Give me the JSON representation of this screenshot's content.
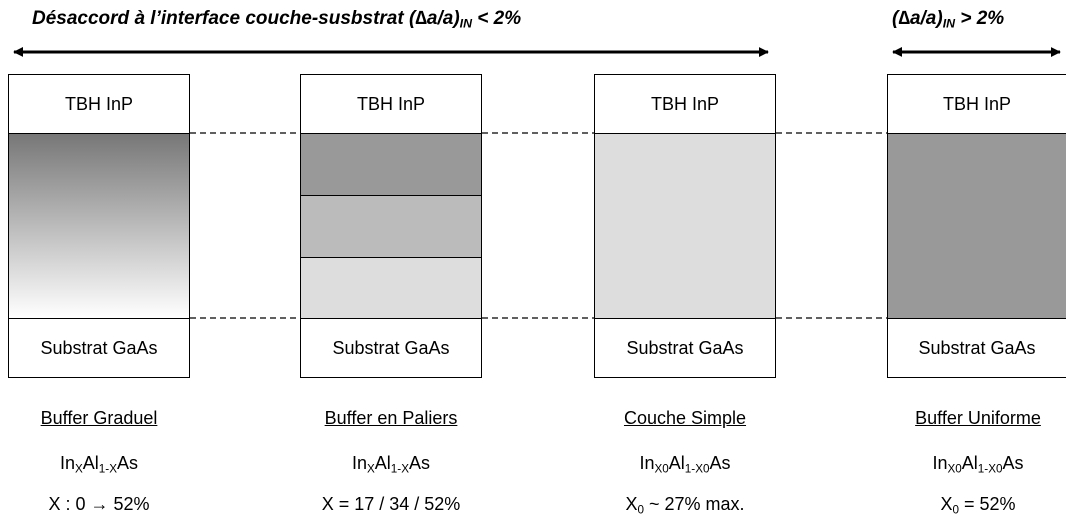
{
  "title": {
    "left": [
      {
        "text": "Désaccord à l’interface couche-susbstrat (∆a/a)"
      },
      {
        "sub": "IN"
      },
      {
        "text": " < 2%"
      }
    ],
    "right": [
      {
        "text": "(∆a/a)"
      },
      {
        "sub": "IN"
      },
      {
        "text": " > 2%"
      }
    ]
  },
  "columns": [
    {
      "top": "TBH InP",
      "bottom": "Substrat GaAs",
      "name": "Buffer Graduel",
      "formula": [
        {
          "text": "In"
        },
        {
          "sub": "X"
        },
        {
          "text": "Al"
        },
        {
          "sub": "1-X"
        },
        {
          "text": "As"
        }
      ],
      "condition": [
        {
          "text": "X : 0 → 52%"
        }
      ]
    },
    {
      "top": "TBH InP",
      "bottom": "Substrat GaAs",
      "name": "Buffer en Paliers",
      "formula": [
        {
          "text": "In"
        },
        {
          "sub": "X"
        },
        {
          "text": "Al"
        },
        {
          "sub": "1-X"
        },
        {
          "text": "As"
        }
      ],
      "condition": [
        {
          "text": "X = 17 / 34 / 52%"
        }
      ]
    },
    {
      "top": "TBH InP",
      "bottom": "Substrat GaAs",
      "name": "Couche Simple",
      "formula": [
        {
          "text": "In"
        },
        {
          "sub": "X0"
        },
        {
          "text": "Al"
        },
        {
          "sub": "1-X0"
        },
        {
          "text": "As"
        }
      ],
      "condition": [
        {
          "text": "X"
        },
        {
          "sub": "0"
        },
        {
          "text": " ~ 27% max."
        }
      ]
    },
    {
      "top": "TBH InP",
      "bottom": "Substrat GaAs",
      "name": "Buffer Uniforme",
      "formula": [
        {
          "text": "In"
        },
        {
          "sub": "X0"
        },
        {
          "text": "Al"
        },
        {
          "sub": "1-X0"
        },
        {
          "text": "As"
        }
      ],
      "condition": [
        {
          "text": "X"
        },
        {
          "sub": "0"
        },
        {
          "text": " = 52%"
        }
      ]
    }
  ]
}
